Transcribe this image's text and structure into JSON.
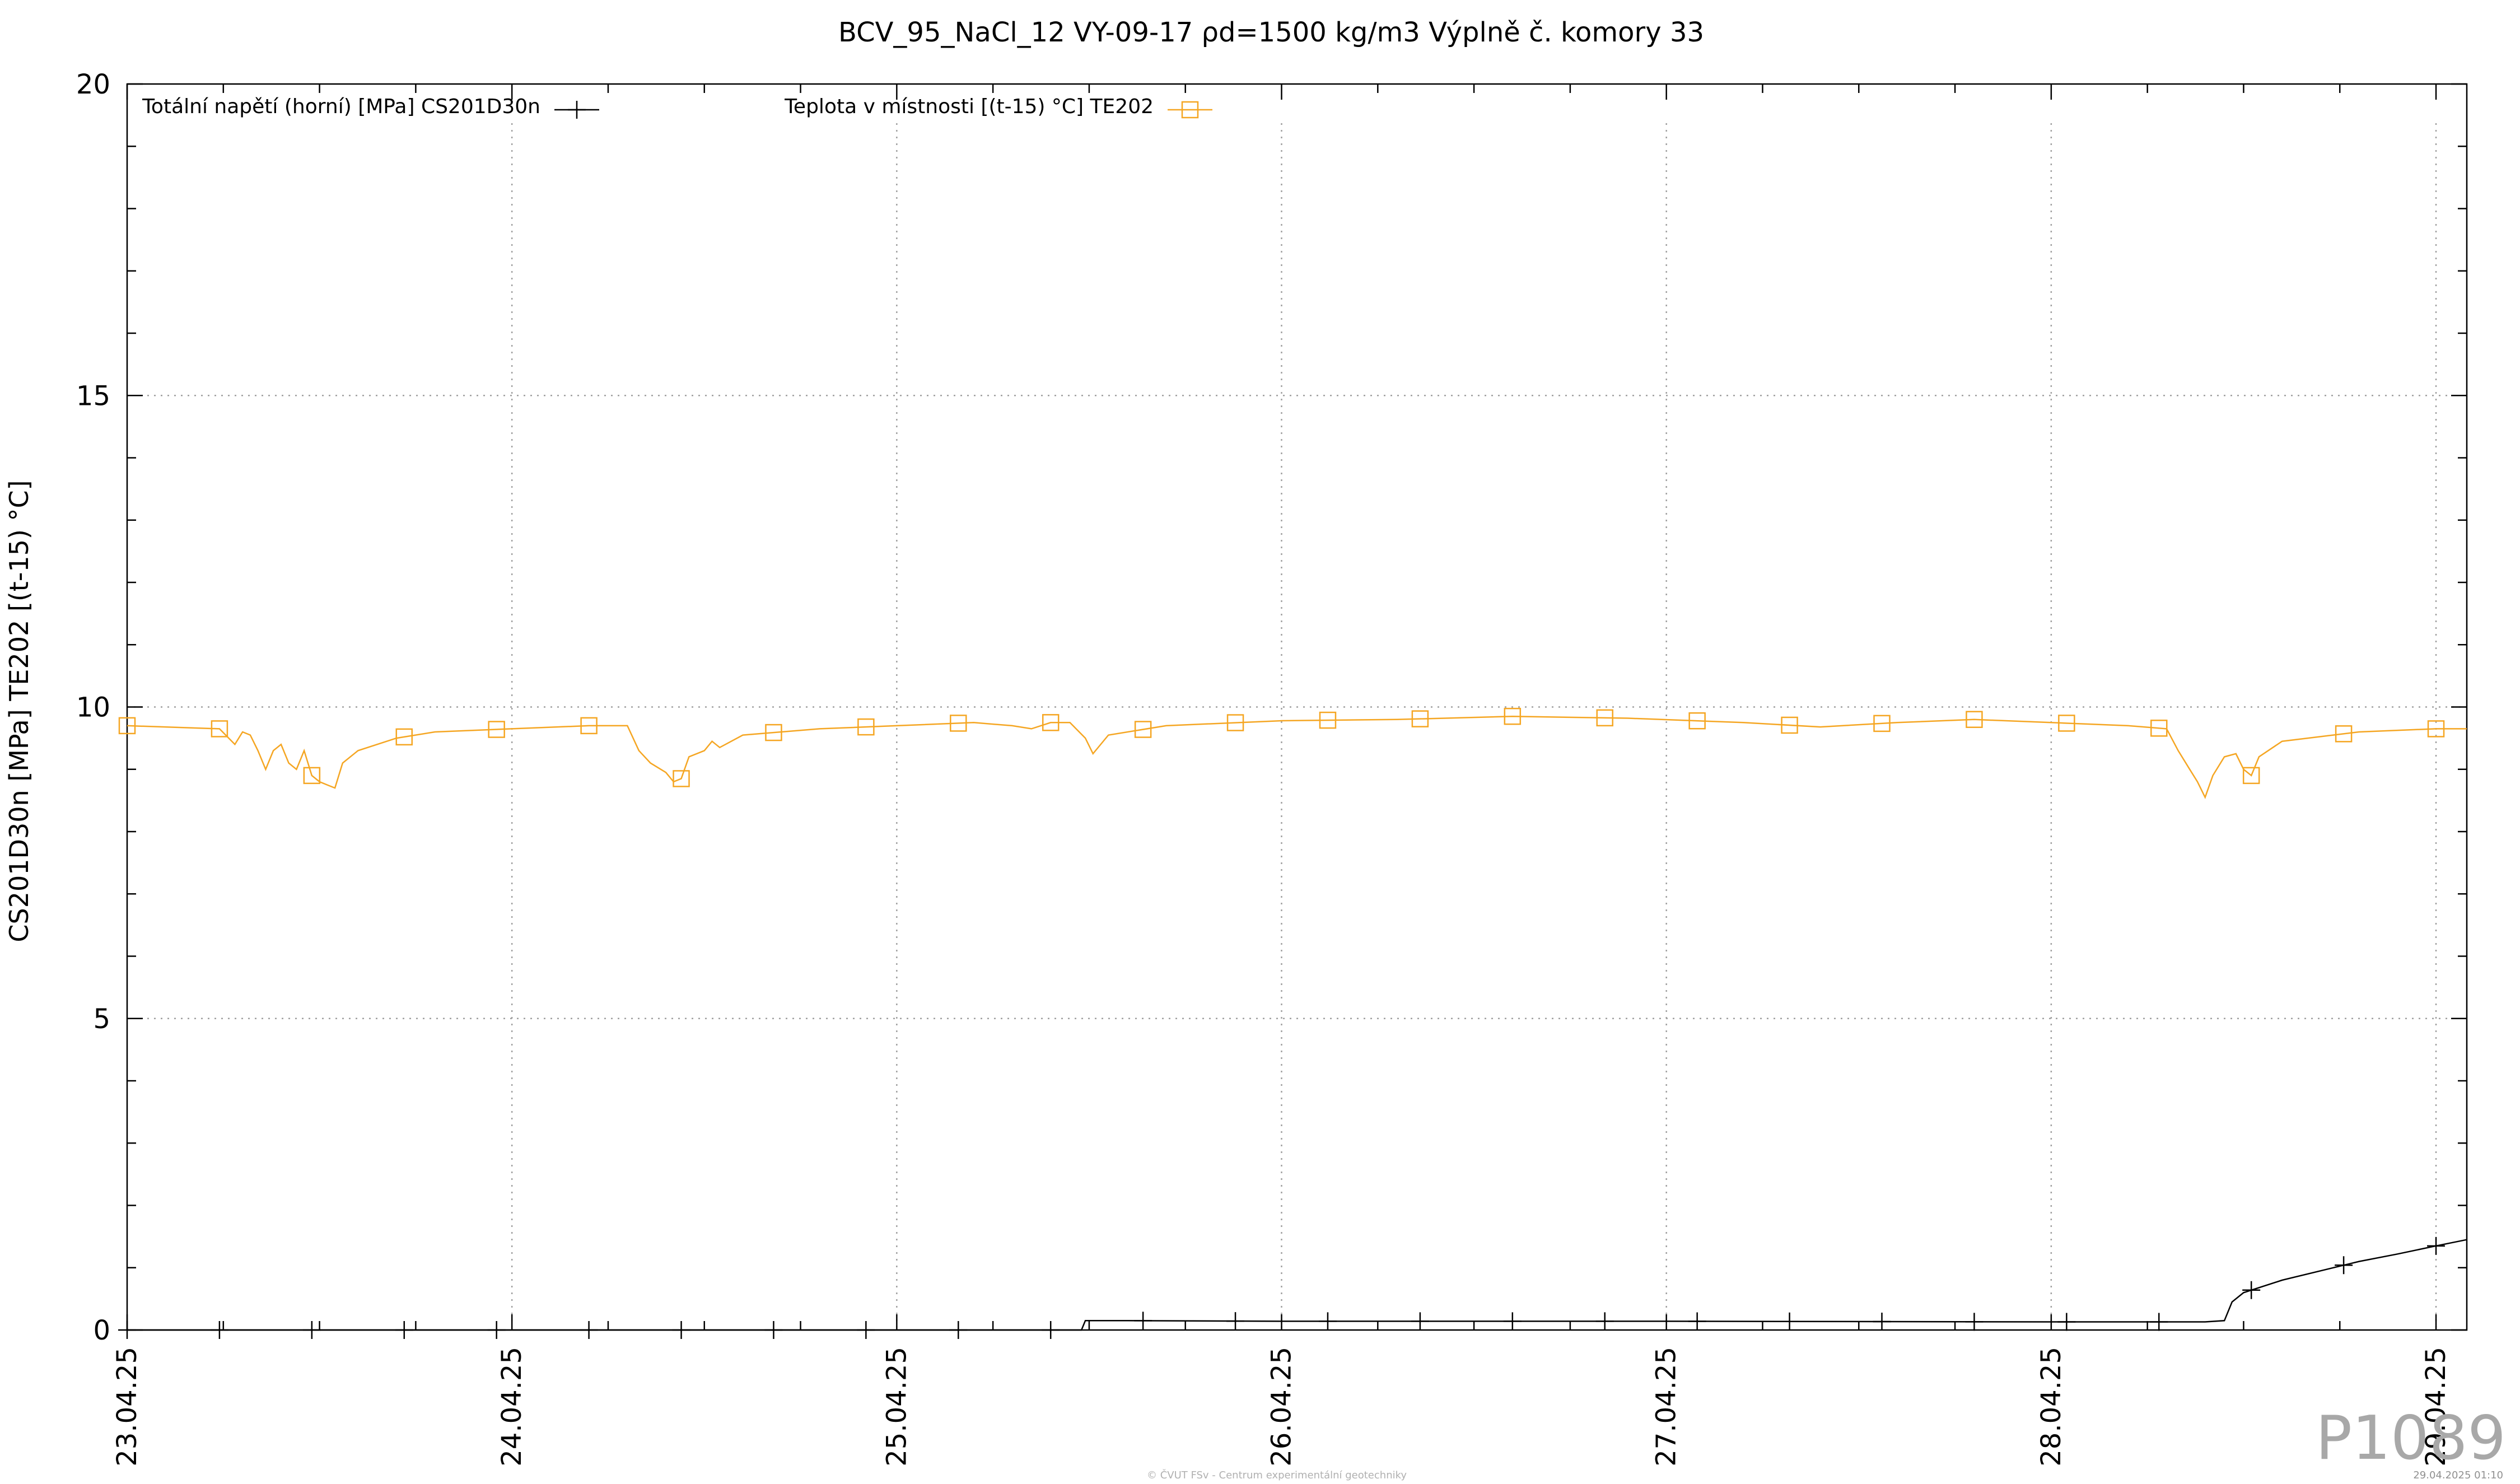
{
  "chart_data": {
    "type": "line",
    "title": "BCV_95_NaCl_12 VY-09-17  ρd=1500 kg/m3 Výplně č. komory 33",
    "ylabel": "CS201D30n [MPa] TE202 [(t-15) °C]",
    "xlabel": "",
    "ylim": [
      0,
      20
    ],
    "yticks": [
      0,
      5,
      10,
      15,
      20
    ],
    "xlim": [
      0,
      6.08
    ],
    "x_unit": "days from 23.04.25 00:00",
    "xticks": [
      {
        "x": 0,
        "label": "23.04.25"
      },
      {
        "x": 1,
        "label": "24.04.25"
      },
      {
        "x": 2,
        "label": "25.04.25"
      },
      {
        "x": 3,
        "label": "26.04.25"
      },
      {
        "x": 4,
        "label": "27.04.25"
      },
      {
        "x": 5,
        "label": "28.04.25"
      },
      {
        "x": 6,
        "label": "29.04.25"
      }
    ],
    "grid": true,
    "legend_position": "top",
    "series": [
      {
        "name": "Totální napětí (horní) [MPa] CS201D30n",
        "color": "#000000",
        "marker": "plus",
        "marker_every": 0.24,
        "points": [
          [
            0,
            0.0
          ],
          [
            2.48,
            0.0
          ],
          [
            2.49,
            0.15
          ],
          [
            2.6,
            0.15
          ],
          [
            3.0,
            0.14
          ],
          [
            4.0,
            0.14
          ],
          [
            5.0,
            0.13
          ],
          [
            5.4,
            0.13
          ],
          [
            5.45,
            0.15
          ],
          [
            5.47,
            0.45
          ],
          [
            5.5,
            0.6
          ],
          [
            5.6,
            0.8
          ],
          [
            5.7,
            0.95
          ],
          [
            5.8,
            1.1
          ],
          [
            5.9,
            1.22
          ],
          [
            6.0,
            1.35
          ],
          [
            6.08,
            1.45
          ]
        ]
      },
      {
        "name": "Teplota v místnosti [(t-15) °C] TE202",
        "color": "#f5a623",
        "marker": "square",
        "marker_every": 0.24,
        "points": [
          [
            0,
            9.7
          ],
          [
            0.24,
            9.65
          ],
          [
            0.28,
            9.4
          ],
          [
            0.3,
            9.6
          ],
          [
            0.32,
            9.55
          ],
          [
            0.34,
            9.3
          ],
          [
            0.36,
            9.0
          ],
          [
            0.38,
            9.3
          ],
          [
            0.4,
            9.4
          ],
          [
            0.42,
            9.1
          ],
          [
            0.44,
            9.0
          ],
          [
            0.46,
            9.3
          ],
          [
            0.48,
            8.9
          ],
          [
            0.5,
            8.8
          ],
          [
            0.52,
            8.75
          ],
          [
            0.54,
            8.7
          ],
          [
            0.56,
            9.1
          ],
          [
            0.6,
            9.3
          ],
          [
            0.7,
            9.5
          ],
          [
            0.8,
            9.6
          ],
          [
            1.0,
            9.65
          ],
          [
            1.2,
            9.7
          ],
          [
            1.3,
            9.7
          ],
          [
            1.33,
            9.3
          ],
          [
            1.36,
            9.1
          ],
          [
            1.4,
            8.95
          ],
          [
            1.42,
            8.8
          ],
          [
            1.44,
            8.85
          ],
          [
            1.46,
            9.2
          ],
          [
            1.5,
            9.3
          ],
          [
            1.52,
            9.45
          ],
          [
            1.54,
            9.35
          ],
          [
            1.6,
            9.55
          ],
          [
            1.8,
            9.65
          ],
          [
            2.0,
            9.7
          ],
          [
            2.2,
            9.75
          ],
          [
            2.3,
            9.7
          ],
          [
            2.35,
            9.65
          ],
          [
            2.4,
            9.75
          ],
          [
            2.45,
            9.75
          ],
          [
            2.49,
            9.5
          ],
          [
            2.51,
            9.25
          ],
          [
            2.55,
            9.55
          ],
          [
            2.7,
            9.7
          ],
          [
            3.0,
            9.78
          ],
          [
            3.3,
            9.8
          ],
          [
            3.6,
            9.85
          ],
          [
            3.9,
            9.82
          ],
          [
            4.2,
            9.75
          ],
          [
            4.4,
            9.68
          ],
          [
            4.6,
            9.75
          ],
          [
            4.8,
            9.8
          ],
          [
            5.0,
            9.75
          ],
          [
            5.2,
            9.7
          ],
          [
            5.3,
            9.65
          ],
          [
            5.33,
            9.3
          ],
          [
            5.36,
            9.0
          ],
          [
            5.38,
            8.8
          ],
          [
            5.4,
            8.55
          ],
          [
            5.42,
            8.9
          ],
          [
            5.45,
            9.2
          ],
          [
            5.48,
            9.25
          ],
          [
            5.5,
            9.0
          ],
          [
            5.52,
            8.9
          ],
          [
            5.54,
            9.2
          ],
          [
            5.6,
            9.45
          ],
          [
            5.8,
            9.6
          ],
          [
            6.0,
            9.65
          ],
          [
            6.08,
            9.65
          ]
        ]
      }
    ],
    "watermark": "P1089",
    "footer_center": "© ČVUT FSv - Centrum experimentální geotechniky",
    "footer_right": "29.04.2025 01:10"
  }
}
